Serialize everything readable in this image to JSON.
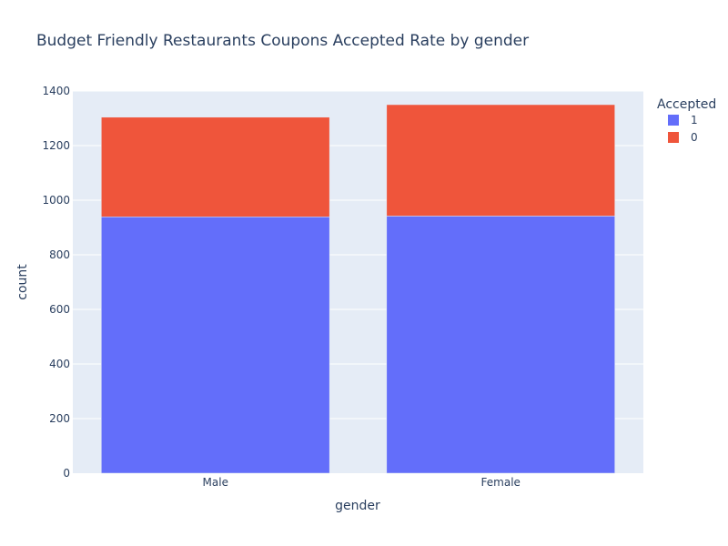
{
  "chart_data": {
    "type": "bar",
    "barmode": "stack",
    "title": "Budget Friendly Restaurants Coupons Accepted Rate by gender",
    "xlabel": "gender",
    "ylabel": "count",
    "categories": [
      "Male",
      "Female"
    ],
    "ylim": [
      0,
      1400
    ],
    "yticks": [
      0,
      200,
      400,
      600,
      800,
      1000,
      1200,
      1400
    ],
    "grid": true,
    "legend": {
      "title": "Accepted",
      "placement": "top-right"
    },
    "series": [
      {
        "name": "1",
        "values": [
          939,
          942
        ],
        "color": "#636efa"
      },
      {
        "name": "0",
        "values": [
          365,
          408
        ],
        "color": "#ef553b"
      }
    ]
  }
}
